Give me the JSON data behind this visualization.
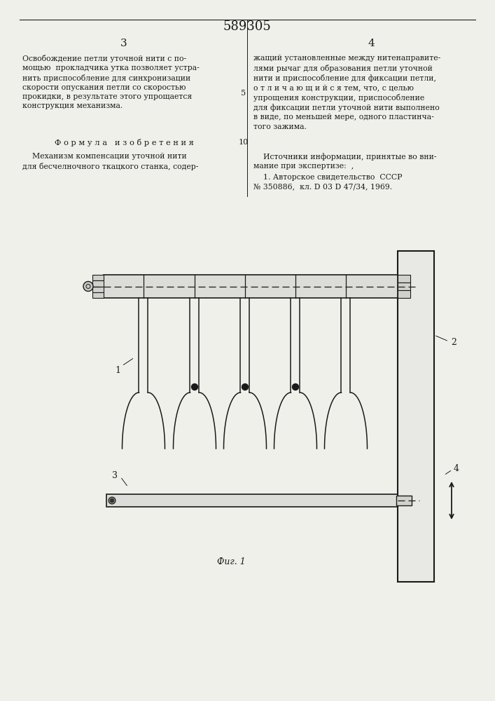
{
  "patent_number": "589305",
  "page_left": "3",
  "page_right": "4",
  "text_left_bold": "Освобождение петли уточной нити с по-\nмощью  прокладчика утка позволяет устра-\nнить приспособление для синхронизации\nскорости опускания петли со скоростью\nпрокидки, в результате этого упрощается\nконструкция механизма.",
  "formula_header": "Ф о р м у л а   и з о б р е т е н и я",
  "formula_text": "    Механизм компенсации уточной нити\nдля бесчелночного ткацкого станка, содер-",
  "text_right_col": "жащий установленные между нитенаправите-\nлями рычаг для образования петли уточной\nнити и приспособление для фиксации петли,\nо т л и ч а ю щ и й с я тем, что, с целью\nупрощения конструкции, приспособление\nдля фиксации петли уточной нити выполнено\nв виде, по меньшей мере, одного пластинча-\nтого зажима.",
  "line_num_5": "5",
  "line_num_10": "10",
  "sources_header": "    Источники информации, принятые во вни-\nмание при экспертизе:  ,",
  "source_1": "    1. Авторское свидетельство  СССР\n№ 350886,  кл. D 03 D 47/34, 1969.",
  "fig_caption": "Фиг. 1",
  "bg_color": "#f0f0eb",
  "line_color": "#1a1a1a",
  "text_color": "#1a1a1a"
}
